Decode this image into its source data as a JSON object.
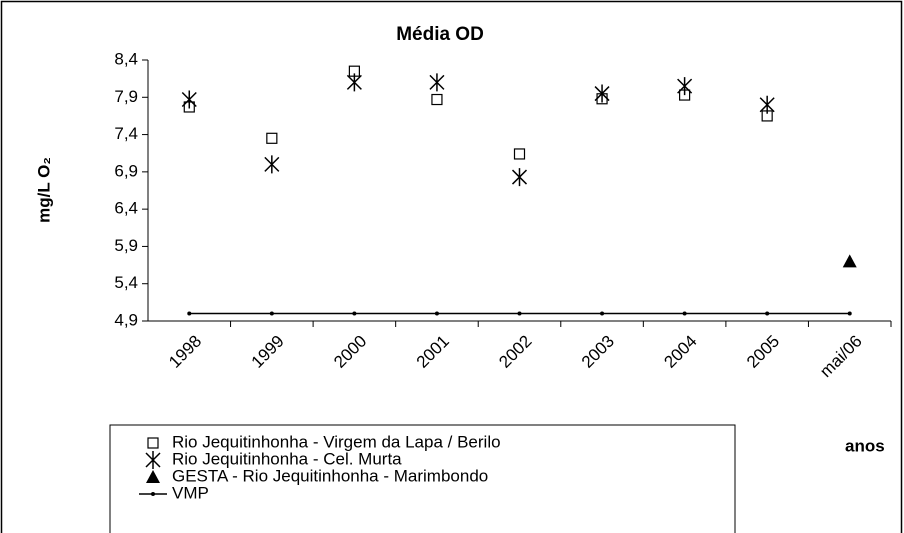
{
  "chart_data": {
    "type": "scatter",
    "title": "Média OD",
    "y_label": "mg/L O₂",
    "x_label": "anos",
    "categories": [
      "1998",
      "1999",
      "2000",
      "2001",
      "2002",
      "2003",
      "2004",
      "2005",
      "mai/06"
    ],
    "series": [
      {
        "name": "Rio Jequitinhonha - Virgem da Lapa / Berilo",
        "marker": "square",
        "color": "#000000",
        "values": [
          7.77,
          7.35,
          8.25,
          7.87,
          7.14,
          7.88,
          7.93,
          7.65,
          null
        ]
      },
      {
        "name": "Rio Jequitinhonha - Cel. Murta",
        "marker": "asterisk",
        "color": "#000000",
        "values": [
          7.87,
          7.0,
          8.1,
          8.1,
          6.83,
          7.95,
          8.05,
          7.8,
          null
        ]
      },
      {
        "name": "GESTA - Rio Jequitinhonha - Marimbondo",
        "marker": "triangle",
        "color": "#000000",
        "values": [
          null,
          null,
          null,
          null,
          null,
          null,
          null,
          null,
          5.7
        ]
      },
      {
        "name": "VMP",
        "marker": "line",
        "color": "#000000",
        "values": [
          5.0,
          5.0,
          5.0,
          5.0,
          5.0,
          5.0,
          5.0,
          5.0,
          5.0
        ]
      }
    ],
    "ylim": [
      4.9,
      8.4
    ],
    "yticks": [
      {
        "value": 4.9,
        "label": "4,9"
      },
      {
        "value": 5.4,
        "label": "5,4"
      },
      {
        "value": 5.9,
        "label": "5,9"
      },
      {
        "value": 6.4,
        "label": "6,4"
      },
      {
        "value": 6.9,
        "label": "6,9"
      },
      {
        "value": 7.4,
        "label": "7,4"
      },
      {
        "value": 7.9,
        "label": "7,9"
      },
      {
        "value": 8.4,
        "label": "8,4"
      }
    ]
  }
}
